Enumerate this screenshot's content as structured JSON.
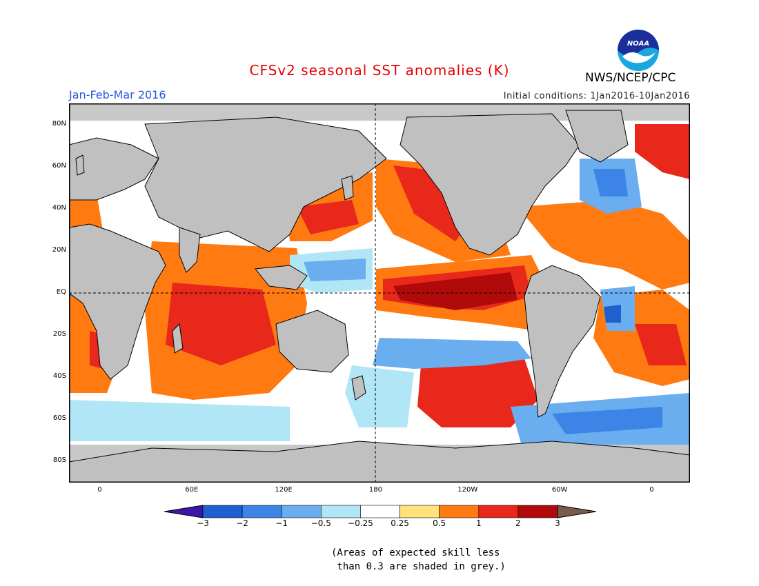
{
  "header": {
    "title": "CFSv2 seasonal SST anomalies (K)",
    "period": "Jan-Feb-Mar 2016",
    "initial_conditions": "Initial conditions: 1Jan2016-10Jan2016",
    "organization": "NWS/NCEP/CPC",
    "logo_text": "NOAA"
  },
  "map": {
    "projection": "cylindrical equidistant",
    "lon_range": [
      -20,
      385
    ],
    "lat_range": [
      -90,
      90
    ],
    "lat_ticks": [
      {
        "lat": 80,
        "label": "80N"
      },
      {
        "lat": 60,
        "label": "60N"
      },
      {
        "lat": 40,
        "label": "40N"
      },
      {
        "lat": 20,
        "label": "20N"
      },
      {
        "lat": 0,
        "label": "EQ"
      },
      {
        "lat": -20,
        "label": "20S"
      },
      {
        "lat": -40,
        "label": "40S"
      },
      {
        "lat": -60,
        "label": "60S"
      },
      {
        "lat": -80,
        "label": "80S"
      }
    ],
    "lon_ticks": [
      {
        "lon": 0,
        "label": "0"
      },
      {
        "lon": 60,
        "label": "60E"
      },
      {
        "lon": 120,
        "label": "120E"
      },
      {
        "lon": 180,
        "label": "180"
      },
      {
        "lon": 240,
        "label": "120W"
      },
      {
        "lon": 300,
        "label": "60W"
      },
      {
        "lon": 360,
        "label": "0"
      }
    ],
    "colors": {
      "land": "#c0c0c0",
      "skill_mask": "#c8c8c8",
      "coastline": "#000000"
    }
  },
  "colorbar": {
    "labels": [
      "−3",
      "−2",
      "−1",
      "−0.5",
      "−0.25",
      "0.25",
      "0.5",
      "1",
      "2",
      "3"
    ],
    "colors": [
      "#3b16a8",
      "#1f5fd0",
      "#3c85e6",
      "#6aaef0",
      "#b0e6f5",
      "#ffffff",
      "#ffe27a",
      "#ff7a10",
      "#e8281a",
      "#b00a0a",
      "#7a5a4a"
    ]
  },
  "note": {
    "line1": "(Areas of expected skill less",
    "line2": " than 0.3 are shaded in grey.)"
  }
}
